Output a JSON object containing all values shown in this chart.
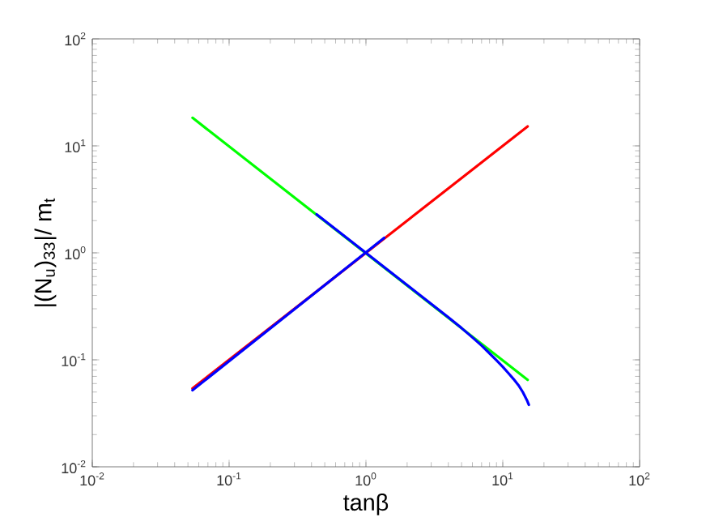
{
  "chart_data": {
    "type": "line",
    "xlabel": "tanβ",
    "ylabel": "|(N$_{u}$)$_{33}$|/ m$_{t}$",
    "log": "xy",
    "xlim": [
      0.01,
      100
    ],
    "ylim": [
      0.01,
      100
    ],
    "xticks": [
      {
        "value": 0.01,
        "label": "10$^{-2}$"
      },
      {
        "value": 0.1,
        "label": "10$^{-1}$"
      },
      {
        "value": 1,
        "label": "10$^{0}$"
      },
      {
        "value": 10,
        "label": "10$^{1}$"
      },
      {
        "value": 100,
        "label": "10$^{2}$"
      }
    ],
    "yticks": [
      {
        "value": 0.01,
        "label": "10$^{-2}$"
      },
      {
        "value": 0.1,
        "label": "10$^{-1}$"
      },
      {
        "value": 1,
        "label": "10$^{0}$"
      },
      {
        "value": 10,
        "label": "10$^{1}$"
      },
      {
        "value": 100,
        "label": "10$^{2}$"
      }
    ],
    "series": [
      {
        "color": "#00ff00",
        "x": [
          0.054,
          15.2
        ],
        "values": [
          18.3,
          0.065
        ]
      },
      {
        "color": "#ff0000",
        "x": [
          0.054,
          15.2
        ],
        "values": [
          0.054,
          15.2
        ]
      },
      {
        "color": "#0000ff",
        "x": [
          0.054,
          1.36
        ],
        "values": [
          0.052,
          1.38
        ]
      },
      {
        "color": "#0000ff",
        "x": [
          0.436,
          1,
          2,
          4,
          5,
          6,
          7,
          8,
          9,
          10,
          11,
          12,
          13,
          14,
          15,
          15.5
        ],
        "values": [
          2.29,
          1,
          0.5,
          0.25,
          0.198,
          0.162,
          0.136,
          0.115,
          0.099,
          0.086,
          0.075,
          0.066,
          0.058,
          0.05,
          0.042,
          0.038
        ]
      }
    ]
  }
}
